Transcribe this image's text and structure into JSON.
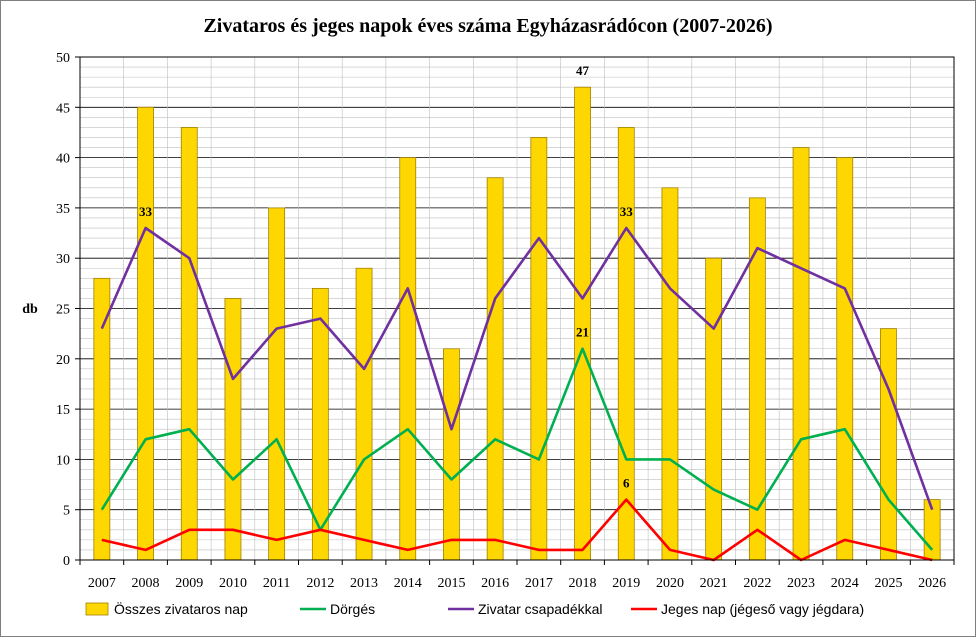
{
  "chart_data": {
    "type": "bar",
    "title": "Zivataros és jeges napok éves száma  Egyházasrádócon (2007-2026)",
    "ylabel": "db",
    "ylim": [
      0,
      50
    ],
    "yticks": [
      0,
      5,
      10,
      15,
      20,
      25,
      30,
      35,
      40,
      45,
      50
    ],
    "grid": true,
    "legend_position": "bottom",
    "categories": [
      "2007",
      "2008",
      "2009",
      "2010",
      "2011",
      "2012",
      "2013",
      "2014",
      "2015",
      "2016",
      "2017",
      "2018",
      "2019",
      "2020",
      "2021",
      "2022",
      "2023",
      "2024",
      "2025",
      "2026"
    ],
    "series": [
      {
        "name": "Összes zivataros nap",
        "kind": "bar",
        "color": "#FFD700",
        "values": [
          28,
          45,
          43,
          26,
          35,
          27,
          29,
          40,
          21,
          38,
          42,
          47,
          43,
          37,
          30,
          36,
          41,
          40,
          23,
          6
        ]
      },
      {
        "name": "Dörgés",
        "kind": "line",
        "color": "#00B050",
        "values": [
          5,
          12,
          13,
          8,
          12,
          3,
          10,
          13,
          8,
          12,
          10,
          21,
          10,
          10,
          7,
          5,
          12,
          13,
          6,
          1
        ]
      },
      {
        "name": "Zivatar csapadékkal",
        "kind": "line",
        "color": "#7030A0",
        "values": [
          23,
          33,
          30,
          18,
          23,
          24,
          19,
          27,
          13,
          26,
          32,
          26,
          33,
          27,
          23,
          31,
          29,
          27,
          17,
          5
        ]
      },
      {
        "name": "Jeges nap (jégeső vagy jégdara)",
        "kind": "line",
        "color": "#FF0000",
        "values": [
          2,
          1,
          3,
          3,
          2,
          3,
          2,
          1,
          2,
          2,
          1,
          1,
          6,
          1,
          0,
          3,
          0,
          2,
          1,
          0
        ]
      }
    ],
    "data_labels": [
      {
        "series": 0,
        "index": 11,
        "text": "47"
      },
      {
        "series": 2,
        "index": 1,
        "text": "33"
      },
      {
        "series": 2,
        "index": 12,
        "text": "33"
      },
      {
        "series": 1,
        "index": 11,
        "text": "21"
      },
      {
        "series": 3,
        "index": 12,
        "text": "6"
      }
    ]
  }
}
